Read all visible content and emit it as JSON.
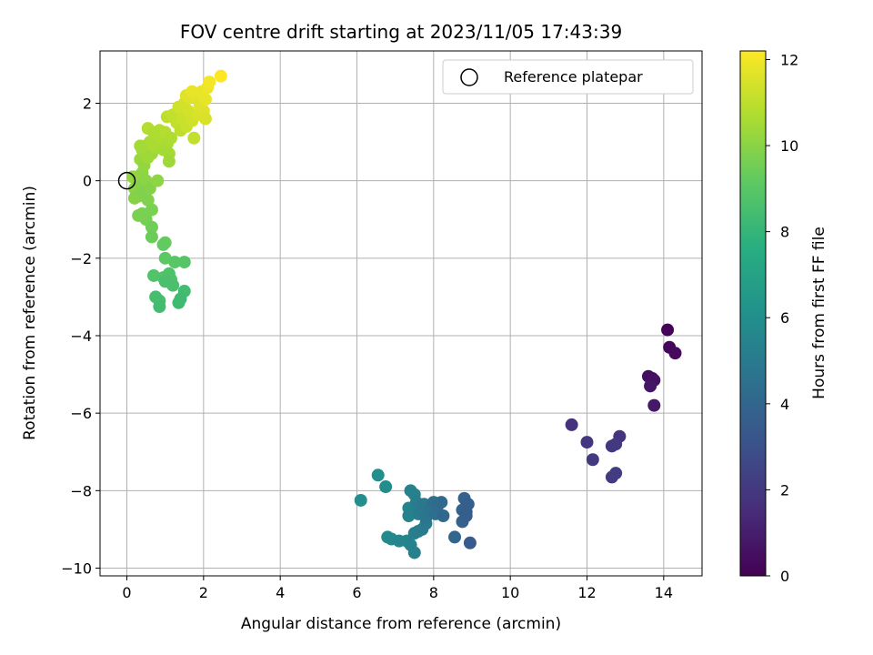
{
  "chart_data": {
    "type": "scatter",
    "title": "FOV centre drift starting at 2023/11/05 17:43:39",
    "xlabel": "Angular distance from reference (arcmin)",
    "ylabel": "Rotation from reference (arcmin)",
    "xlim": [
      -0.7,
      15.0
    ],
    "ylim": [
      -10.2,
      3.35
    ],
    "xticks": [
      0,
      2,
      4,
      6,
      8,
      10,
      12,
      14
    ],
    "yticks": [
      -10,
      -8,
      -6,
      -4,
      -2,
      0,
      2
    ],
    "grid": true,
    "legend": {
      "placement": "top-right",
      "entries": [
        "Reference platepar"
      ]
    },
    "reference_point": {
      "x": 0,
      "y": 0,
      "marker": "open-circle"
    },
    "colorbar": {
      "label": "Hours from first FF file",
      "colormap": "viridis",
      "min": 0,
      "max": 12.2,
      "ticks": [
        0,
        2,
        4,
        6,
        8,
        10,
        12
      ]
    },
    "points": [
      {
        "x": 14.1,
        "y": -3.85,
        "h": 0.1
      },
      {
        "x": 14.15,
        "y": -4.3,
        "h": 0.2
      },
      {
        "x": 14.3,
        "y": -4.45,
        "h": 0.3
      },
      {
        "x": 13.6,
        "y": -5.05,
        "h": 0.4
      },
      {
        "x": 13.7,
        "y": -5.1,
        "h": 0.5
      },
      {
        "x": 13.75,
        "y": -5.15,
        "h": 0.6
      },
      {
        "x": 13.65,
        "y": -5.3,
        "h": 0.7
      },
      {
        "x": 13.75,
        "y": -5.8,
        "h": 0.8
      },
      {
        "x": 11.6,
        "y": -6.3,
        "h": 1.7
      },
      {
        "x": 12.0,
        "y": -6.75,
        "h": 1.9
      },
      {
        "x": 12.15,
        "y": -7.2,
        "h": 2.0
      },
      {
        "x": 12.85,
        "y": -6.6,
        "h": 1.8
      },
      {
        "x": 12.65,
        "y": -6.85,
        "h": 1.9
      },
      {
        "x": 12.75,
        "y": -6.8,
        "h": 2.0
      },
      {
        "x": 12.65,
        "y": -7.65,
        "h": 2.1
      },
      {
        "x": 12.75,
        "y": -7.55,
        "h": 2.2
      },
      {
        "x": 6.1,
        "y": -8.25,
        "h": 6.0
      },
      {
        "x": 6.55,
        "y": -7.6,
        "h": 6.0
      },
      {
        "x": 6.75,
        "y": -7.9,
        "h": 5.9
      },
      {
        "x": 6.8,
        "y": -9.2,
        "h": 5.8
      },
      {
        "x": 6.9,
        "y": -9.25,
        "h": 5.7
      },
      {
        "x": 7.1,
        "y": -9.3,
        "h": 5.6
      },
      {
        "x": 7.3,
        "y": -9.3,
        "h": 5.5
      },
      {
        "x": 7.4,
        "y": -9.4,
        "h": 5.4
      },
      {
        "x": 7.5,
        "y": -9.6,
        "h": 5.3
      },
      {
        "x": 7.5,
        "y": -9.1,
        "h": 5.2
      },
      {
        "x": 7.6,
        "y": -9.05,
        "h": 5.1
      },
      {
        "x": 7.7,
        "y": -9.0,
        "h": 5.0
      },
      {
        "x": 7.8,
        "y": -8.85,
        "h": 4.9
      },
      {
        "x": 7.35,
        "y": -8.45,
        "h": 5.5
      },
      {
        "x": 7.35,
        "y": -8.65,
        "h": 5.4
      },
      {
        "x": 7.45,
        "y": -8.5,
        "h": 5.3
      },
      {
        "x": 7.4,
        "y": -8.0,
        "h": 5.4
      },
      {
        "x": 7.5,
        "y": -8.1,
        "h": 5.3
      },
      {
        "x": 7.55,
        "y": -8.3,
        "h": 5.2
      },
      {
        "x": 7.6,
        "y": -8.6,
        "h": 5.1
      },
      {
        "x": 7.65,
        "y": -8.4,
        "h": 5.0
      },
      {
        "x": 7.7,
        "y": -8.55,
        "h": 4.9
      },
      {
        "x": 7.75,
        "y": -8.35,
        "h": 4.8
      },
      {
        "x": 7.8,
        "y": -8.7,
        "h": 4.7
      },
      {
        "x": 7.9,
        "y": -8.5,
        "h": 4.6
      },
      {
        "x": 8.0,
        "y": -8.3,
        "h": 4.5
      },
      {
        "x": 8.05,
        "y": -8.6,
        "h": 4.4
      },
      {
        "x": 8.1,
        "y": -8.4,
        "h": 4.3
      },
      {
        "x": 8.2,
        "y": -8.3,
        "h": 4.2
      },
      {
        "x": 8.25,
        "y": -8.65,
        "h": 4.1
      },
      {
        "x": 8.55,
        "y": -9.2,
        "h": 4.0
      },
      {
        "x": 8.75,
        "y": -8.5,
        "h": 3.9
      },
      {
        "x": 8.75,
        "y": -8.8,
        "h": 3.8
      },
      {
        "x": 8.8,
        "y": -8.2,
        "h": 3.8
      },
      {
        "x": 8.85,
        "y": -8.4,
        "h": 3.7
      },
      {
        "x": 8.85,
        "y": -8.65,
        "h": 3.7
      },
      {
        "x": 8.9,
        "y": -8.35,
        "h": 3.6
      },
      {
        "x": 8.85,
        "y": -8.55,
        "h": 3.6
      },
      {
        "x": 8.95,
        "y": -9.35,
        "h": 3.5
      },
      {
        "x": 0.5,
        "y": -1.0,
        "h": 9.6
      },
      {
        "x": 0.65,
        "y": -1.2,
        "h": 9.5
      },
      {
        "x": 0.65,
        "y": -1.45,
        "h": 9.4
      },
      {
        "x": 1.0,
        "y": -1.6,
        "h": 9.3
      },
      {
        "x": 0.95,
        "y": -1.65,
        "h": 9.2
      },
      {
        "x": 1.0,
        "y": -2.0,
        "h": 9.1
      },
      {
        "x": 1.25,
        "y": -2.1,
        "h": 9.0
      },
      {
        "x": 1.5,
        "y": -2.1,
        "h": 8.9
      },
      {
        "x": 0.7,
        "y": -2.45,
        "h": 8.8
      },
      {
        "x": 0.95,
        "y": -2.5,
        "h": 8.8
      },
      {
        "x": 1.1,
        "y": -2.4,
        "h": 8.7
      },
      {
        "x": 1.15,
        "y": -2.55,
        "h": 8.7
      },
      {
        "x": 1.0,
        "y": -2.6,
        "h": 8.6
      },
      {
        "x": 1.2,
        "y": -2.7,
        "h": 8.6
      },
      {
        "x": 0.75,
        "y": -3.0,
        "h": 8.5
      },
      {
        "x": 0.85,
        "y": -3.1,
        "h": 8.5
      },
      {
        "x": 0.85,
        "y": -3.25,
        "h": 8.4
      },
      {
        "x": 1.5,
        "y": -2.85,
        "h": 8.4
      },
      {
        "x": 1.4,
        "y": -3.05,
        "h": 8.3
      },
      {
        "x": 1.35,
        "y": -3.15,
        "h": 8.3
      },
      {
        "x": 0.2,
        "y": -0.2,
        "h": 10.0
      },
      {
        "x": 0.25,
        "y": 0.1,
        "h": 10.0
      },
      {
        "x": 0.3,
        "y": -0.4,
        "h": 9.9
      },
      {
        "x": 0.35,
        "y": -0.1,
        "h": 9.9
      },
      {
        "x": 0.4,
        "y": 0.2,
        "h": 10.1
      },
      {
        "x": 0.45,
        "y": -0.3,
        "h": 9.8
      },
      {
        "x": 0.5,
        "y": 0.0,
        "h": 10.0
      },
      {
        "x": 0.55,
        "y": -0.5,
        "h": 9.8
      },
      {
        "x": 0.6,
        "y": -0.2,
        "h": 9.9
      },
      {
        "x": 0.65,
        "y": -0.75,
        "h": 9.7
      },
      {
        "x": 0.3,
        "y": -0.9,
        "h": 9.7
      },
      {
        "x": 0.4,
        "y": -0.85,
        "h": 9.7
      },
      {
        "x": 0.8,
        "y": 0.0,
        "h": 10.1
      },
      {
        "x": 0.15,
        "y": 0.1,
        "h": 10.2
      },
      {
        "x": 0.2,
        "y": -0.45,
        "h": 9.9
      },
      {
        "x": 0.35,
        "y": 0.55,
        "h": 10.3
      },
      {
        "x": 0.4,
        "y": 0.8,
        "h": 10.4
      },
      {
        "x": 0.45,
        "y": 0.4,
        "h": 10.2
      },
      {
        "x": 0.5,
        "y": 0.9,
        "h": 10.5
      },
      {
        "x": 0.55,
        "y": 0.6,
        "h": 10.4
      },
      {
        "x": 0.6,
        "y": 1.0,
        "h": 10.6
      },
      {
        "x": 0.65,
        "y": 0.7,
        "h": 10.4
      },
      {
        "x": 0.7,
        "y": 0.9,
        "h": 10.6
      },
      {
        "x": 0.75,
        "y": 1.2,
        "h": 10.7
      },
      {
        "x": 0.8,
        "y": 0.95,
        "h": 10.6
      },
      {
        "x": 0.85,
        "y": 1.3,
        "h": 10.8
      },
      {
        "x": 0.9,
        "y": 1.1,
        "h": 10.7
      },
      {
        "x": 0.95,
        "y": 0.8,
        "h": 10.5
      },
      {
        "x": 1.0,
        "y": 1.25,
        "h": 10.8
      },
      {
        "x": 1.05,
        "y": 0.95,
        "h": 10.6
      },
      {
        "x": 1.1,
        "y": 0.7,
        "h": 10.5
      },
      {
        "x": 1.1,
        "y": 0.5,
        "h": 10.4
      },
      {
        "x": 1.15,
        "y": 1.1,
        "h": 10.7
      },
      {
        "x": 0.55,
        "y": 1.35,
        "h": 10.8
      },
      {
        "x": 0.7,
        "y": 1.25,
        "h": 10.7
      },
      {
        "x": 0.35,
        "y": 0.9,
        "h": 10.5
      },
      {
        "x": 1.05,
        "y": 1.65,
        "h": 11.0
      },
      {
        "x": 1.2,
        "y": 1.7,
        "h": 11.1
      },
      {
        "x": 1.3,
        "y": 1.5,
        "h": 11.1
      },
      {
        "x": 1.35,
        "y": 1.9,
        "h": 11.3
      },
      {
        "x": 1.4,
        "y": 1.3,
        "h": 11.0
      },
      {
        "x": 1.45,
        "y": 1.6,
        "h": 11.2
      },
      {
        "x": 1.5,
        "y": 2.0,
        "h": 11.4
      },
      {
        "x": 1.55,
        "y": 1.4,
        "h": 11.2
      },
      {
        "x": 1.6,
        "y": 1.8,
        "h": 11.4
      },
      {
        "x": 1.65,
        "y": 2.15,
        "h": 11.6
      },
      {
        "x": 1.7,
        "y": 1.55,
        "h": 11.3
      },
      {
        "x": 1.75,
        "y": 1.1,
        "h": 11.1
      },
      {
        "x": 1.8,
        "y": 2.2,
        "h": 11.7
      },
      {
        "x": 1.85,
        "y": 1.7,
        "h": 11.5
      },
      {
        "x": 1.9,
        "y": 1.95,
        "h": 11.6
      },
      {
        "x": 1.95,
        "y": 2.3,
        "h": 11.8
      },
      {
        "x": 2.0,
        "y": 1.8,
        "h": 11.6
      },
      {
        "x": 2.05,
        "y": 2.1,
        "h": 11.8
      },
      {
        "x": 2.1,
        "y": 2.4,
        "h": 11.9
      },
      {
        "x": 2.15,
        "y": 2.55,
        "h": 12.0
      },
      {
        "x": 2.45,
        "y": 2.7,
        "h": 12.2
      },
      {
        "x": 1.55,
        "y": 2.2,
        "h": 11.6
      },
      {
        "x": 1.7,
        "y": 2.3,
        "h": 11.8
      },
      {
        "x": 2.05,
        "y": 1.6,
        "h": 11.5
      }
    ]
  }
}
